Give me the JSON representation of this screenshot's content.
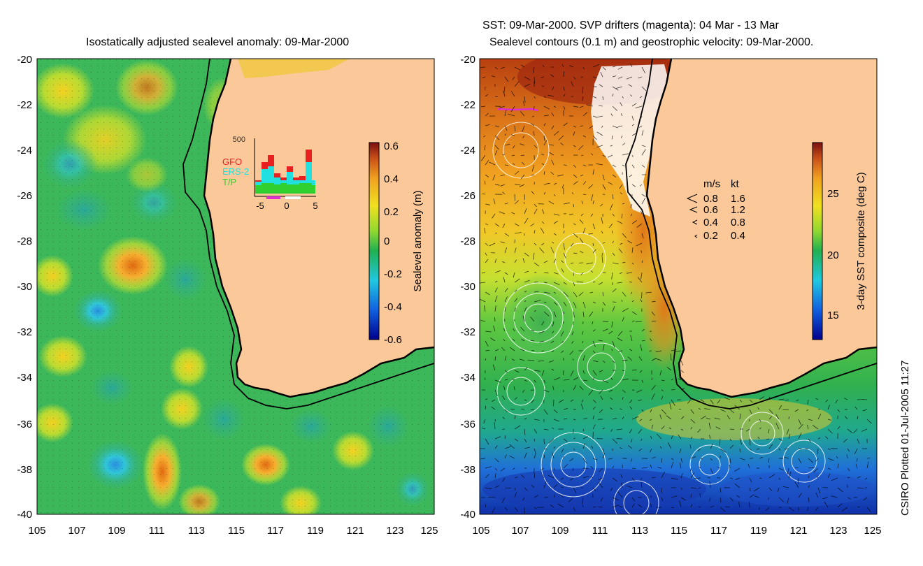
{
  "left_panel": {
    "title": "Isostatically adjusted sealevel anomaly: 09-Mar-2000",
    "x_ticks": [
      "105",
      "107",
      "109",
      "111",
      "113",
      "115",
      "117",
      "119",
      "121",
      "123",
      "125"
    ],
    "y_ticks": [
      "-20",
      "-22",
      "-24",
      "-26",
      "-28",
      "-30",
      "-32",
      "-34",
      "-36",
      "-38",
      "-40"
    ],
    "colorbar": {
      "label": "Sealevel anomaly (m)",
      "ticks": [
        "0.6",
        "0.4",
        "0.2",
        "0",
        "-0.2",
        "-0.4",
        "-0.6"
      ]
    },
    "inset": {
      "y_max": "500",
      "x_ticks": [
        "-5",
        "0",
        "5"
      ],
      "legend": [
        {
          "name": "GFO",
          "color": "#e82020"
        },
        {
          "name": "ERS-2",
          "color": "#20e0e0"
        },
        {
          "name": "T/P",
          "color": "#30d030"
        }
      ]
    }
  },
  "right_panel": {
    "title_line1": "SST: 09-Mar-2000. SVP drifters (magenta): 04 Mar - 13 Mar",
    "title_line2": "Sealevel contours (0.1 m) and geostrophic velocity: 09-Mar-2000.",
    "x_ticks": [
      "105",
      "107",
      "109",
      "111",
      "113",
      "115",
      "117",
      "119",
      "121",
      "123",
      "125"
    ],
    "y_ticks": [
      "-20",
      "-22",
      "-24",
      "-26",
      "-28",
      "-30",
      "-32",
      "-34",
      "-36",
      "-38",
      "-40"
    ],
    "colorbar": {
      "label": "3-day SST composite (deg C)",
      "ticks": [
        "25",
        "20",
        "15"
      ]
    },
    "velocity_legend": {
      "header_ms": "m/s",
      "header_kt": "kt",
      "rows": [
        {
          "ms": "0.8",
          "kt": "1.6"
        },
        {
          "ms": "0.6",
          "kt": "1.2"
        },
        {
          "ms": "0.4",
          "kt": "0.8"
        },
        {
          "ms": "0.2",
          "kt": "0.4"
        }
      ]
    }
  },
  "footer_credit": "CSIRO Plotted 01-Jul-2005 11:27",
  "colors": {
    "land": "#fbc89a",
    "coast": "#000000"
  }
}
